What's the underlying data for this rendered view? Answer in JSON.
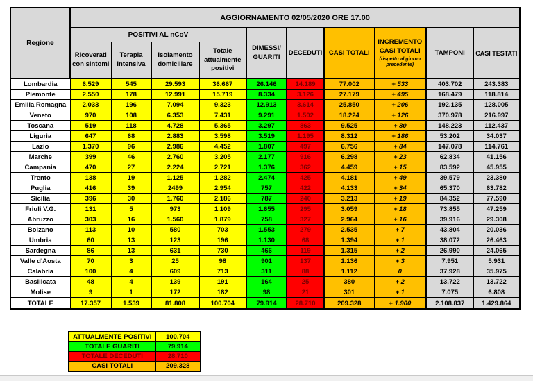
{
  "header": {
    "title": "AGGIORNAMENTO 02/05/2020 ORE 17.00",
    "region": "Regione",
    "group_positivi": "POSITIVI AL nCoV",
    "sub_ricoverati": "Ricoverati con sintomi",
    "sub_terapia": "Terapia intensiva",
    "sub_isolamento": "Isolamento domiciliare",
    "sub_totale_positivi": "Totale attualmente positivi",
    "dimessi": "DIMESSI/ GUARITI",
    "deceduti": "DECEDUTI",
    "casi_totali": "CASI TOTALI",
    "incremento": "INCREMENTO CASI TOTALI",
    "incremento_note": "(rispetto al giorno precedente)",
    "tamponi": "TAMPONI",
    "casi_testati": "CASI TESTATI"
  },
  "chart_data": {
    "type": "table",
    "title": "AGGIORNAMENTO 02/05/2020 ORE 17.00",
    "columns": [
      "Regione",
      "Ricoverati con sintomi",
      "Terapia intensiva",
      "Isolamento domiciliare",
      "Totale attualmente positivi",
      "DIMESSI/GUARITI",
      "DECEDUTI",
      "CASI TOTALI",
      "INCREMENTO CASI TOTALI (rispetto al giorno precedente)",
      "TAMPONI",
      "CASI TESTATI"
    ],
    "rows": [
      [
        "Lombardia",
        "6.529",
        "545",
        "29.593",
        "36.667",
        "26.146",
        "14.189",
        "77.002",
        "+ 533",
        "403.702",
        "243.383"
      ],
      [
        "Piemonte",
        "2.550",
        "178",
        "12.991",
        "15.719",
        "8.334",
        "3.126",
        "27.179",
        "+ 495",
        "168.479",
        "118.814"
      ],
      [
        "Emilia Romagna",
        "2.033",
        "196",
        "7.094",
        "9.323",
        "12.913",
        "3.614",
        "25.850",
        "+ 206",
        "192.135",
        "128.005"
      ],
      [
        "Veneto",
        "970",
        "108",
        "6.353",
        "7.431",
        "9.291",
        "1.502",
        "18.224",
        "+ 126",
        "370.978",
        "216.997"
      ],
      [
        "Toscana",
        "519",
        "118",
        "4.728",
        "5.365",
        "3.297",
        "863",
        "9.525",
        "+ 80",
        "148.223",
        "112.437"
      ],
      [
        "Liguria",
        "647",
        "68",
        "2.883",
        "3.598",
        "3.519",
        "1.195",
        "8.312",
        "+ 186",
        "53.202",
        "34.037"
      ],
      [
        "Lazio",
        "1.370",
        "96",
        "2.986",
        "4.452",
        "1.807",
        "497",
        "6.756",
        "+ 84",
        "147.078",
        "114.761"
      ],
      [
        "Marche",
        "399",
        "46",
        "2.760",
        "3.205",
        "2.177",
        "916",
        "6.298",
        "+ 23",
        "62.834",
        "41.156"
      ],
      [
        "Campania",
        "470",
        "27",
        "2.224",
        "2.721",
        "1.376",
        "362",
        "4.459",
        "+ 15",
        "83.592",
        "45.955"
      ],
      [
        "Trento",
        "138",
        "19",
        "1.125",
        "1.282",
        "2.474",
        "425",
        "4.181",
        "+ 49",
        "39.579",
        "23.380"
      ],
      [
        "Puglia",
        "416",
        "39",
        "2499",
        "2.954",
        "757",
        "422",
        "4.133",
        "+ 34",
        "65.370",
        "63.782"
      ],
      [
        "Sicilia",
        "396",
        "30",
        "1.760",
        "2.186",
        "787",
        "240",
        "3.213",
        "+ 19",
        "84.352",
        "77.590"
      ],
      [
        "Friuli V.G.",
        "131",
        "5",
        "973",
        "1.109",
        "1.655",
        "295",
        "3.059",
        "+ 18",
        "73.855",
        "47.259"
      ],
      [
        "Abruzzo",
        "303",
        "16",
        "1.560",
        "1.879",
        "758",
        "327",
        "2.964",
        "+ 16",
        "39.916",
        "29.308"
      ],
      [
        "Bolzano",
        "113",
        "10",
        "580",
        "703",
        "1.553",
        "279",
        "2.535",
        "+ 7",
        "43.804",
        "20.036"
      ],
      [
        "Umbria",
        "60",
        "13",
        "123",
        "196",
        "1.130",
        "68",
        "1.394",
        "+ 1",
        "38.072",
        "26.463"
      ],
      [
        "Sardegna",
        "86",
        "13",
        "631",
        "730",
        "466",
        "119",
        "1.315",
        "+ 2",
        "26.990",
        "24.065"
      ],
      [
        "Valle d'Aosta",
        "70",
        "3",
        "25",
        "98",
        "901",
        "137",
        "1.136",
        "+ 3",
        "7.951",
        "5.931"
      ],
      [
        "Calabria",
        "100",
        "4",
        "609",
        "713",
        "311",
        "88",
        "1.112",
        "0",
        "37.928",
        "35.975"
      ],
      [
        "Basilicata",
        "48",
        "4",
        "139",
        "191",
        "164",
        "25",
        "380",
        "+ 2",
        "13.722",
        "13.722"
      ],
      [
        "Molise",
        "9",
        "1",
        "172",
        "182",
        "98",
        "21",
        "301",
        "+ 1",
        "7.075",
        "6.808"
      ]
    ],
    "totals_row": [
      "TOTALE",
      "17.357",
      "1.539",
      "81.808",
      "100.704",
      "79.914",
      "28.710",
      "209.328",
      "+ 1.900",
      "2.108.837",
      "1.429.864"
    ],
    "legend": [
      {
        "label": "ATTUALMENTE POSITIVI",
        "value": "100.704",
        "color": "#FFFF00",
        "text_color": "#000000"
      },
      {
        "label": "TOTALE GUARITI",
        "value": "79.914",
        "color": "#00FF00",
        "text_color": "#000000"
      },
      {
        "label": "TOTALE DECEDUTI",
        "value": "28.710",
        "color": "#FF0000",
        "text_color": "#7b0000"
      },
      {
        "label": "CASI TOTALI",
        "value": "209.328",
        "color": "#FFC000",
        "text_color": "#000000"
      }
    ]
  },
  "colors": {
    "positivi_yellow": "#FFFF00",
    "guariti_green": "#00FF00",
    "deceduti_red": "#FF0000",
    "deceduti_text": "#7b0000",
    "casi_totali_orange": "#FFC000",
    "header_gray": "#D9D9D9"
  }
}
